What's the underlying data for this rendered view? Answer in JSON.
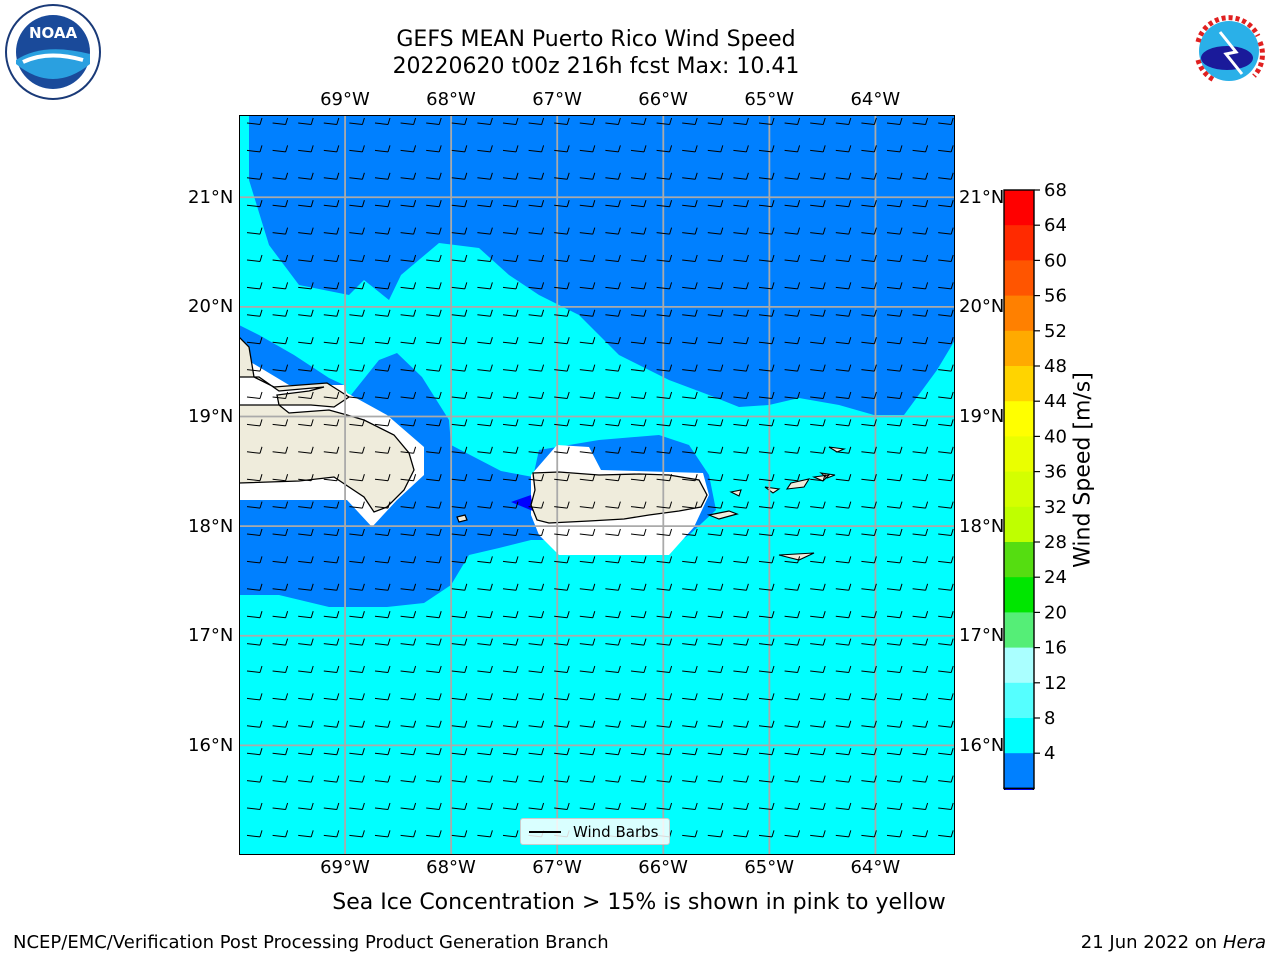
{
  "header": {
    "title_line1": "GEFS MEAN Puerto Rico Wind Speed",
    "title_line2": "20220620 t00z 216h fcst   Max: 10.41"
  },
  "map": {
    "lon_labels": [
      "69°W",
      "68°W",
      "67°W",
      "66°W",
      "65°W",
      "64°W"
    ],
    "lat_labels": [
      "21°N",
      "20°N",
      "19°N",
      "18°N",
      "17°N",
      "16°N"
    ],
    "lon_range": [
      -70.0,
      -63.25
    ],
    "lat_range": [
      15.0,
      21.75
    ],
    "grid": true,
    "fill_colors": {
      "band_4_8": "#0080ff",
      "band_8_12": "#00ffff",
      "below_4": "#0000ff",
      "land": "#efecdc"
    },
    "wind_direction": "easterly"
  },
  "legend": {
    "label": "Wind Barbs"
  },
  "colorbar": {
    "label": "Wind Speed [m/s]",
    "ticks": [
      "68",
      "64",
      "60",
      "56",
      "52",
      "48",
      "44",
      "40",
      "36",
      "32",
      "28",
      "24",
      "20",
      "16",
      "12",
      "8",
      "4"
    ],
    "colors": [
      "#ff0000",
      "#ff2a00",
      "#ff5500",
      "#ff8000",
      "#ffaa00",
      "#ffd400",
      "#ffff00",
      "#eaff00",
      "#d4ff00",
      "#bfff00",
      "#55dd11",
      "#00e600",
      "#55ee77",
      "#aaffff",
      "#55ffff",
      "#00ffff",
      "#0080ff"
    ],
    "under_color": "#0000ff"
  },
  "logos": {
    "left": "NOAA",
    "right": "NATIONAL WEATHER SERVICE"
  },
  "notes": {
    "sea_ice": "Sea Ice Concentration > 15% is shown in pink to yellow"
  },
  "footer": {
    "left": "NCEP/EMC/Verification Post Processing Product Generation Branch",
    "date": "21 Jun 2022 on",
    "host": "Hera"
  }
}
